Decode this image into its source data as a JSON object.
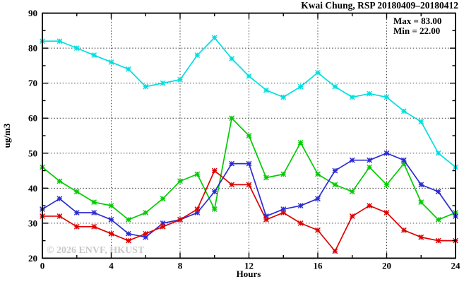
{
  "title": "Kwai Chung, RSP 20180409–20180412",
  "annotations": {
    "max_label": "Max = 83.00",
    "min_label": "Min = 22.00"
  },
  "watermark": "© 2026 ENVF, HKUST",
  "chart_data": {
    "type": "line",
    "title": "Kwai Chung, RSP 20180409–20180412",
    "xlabel": "Hours",
    "ylabel": "ug/m3",
    "xlim": [
      0,
      24
    ],
    "ylim": [
      20,
      90
    ],
    "x": [
      0,
      1,
      2,
      3,
      4,
      5,
      6,
      7,
      8,
      9,
      10,
      11,
      12,
      13,
      14,
      15,
      16,
      17,
      18,
      19,
      20,
      21,
      22,
      23,
      24
    ],
    "x_major_ticks": [
      0,
      4,
      8,
      12,
      16,
      20,
      24
    ],
    "x_minor_ticks": [
      2,
      6,
      10,
      14,
      18,
      22
    ],
    "y_major_ticks": [
      20,
      30,
      40,
      50,
      60,
      70,
      80,
      90
    ],
    "y_minor_ticks": [
      25,
      35,
      45,
      55,
      65,
      75,
      85
    ],
    "grid": "dotted-at-major-ticks",
    "legend_position": "top-right-inside-stats-only",
    "marker": "asterisk",
    "stats": {
      "max": 83.0,
      "min": 22.0
    },
    "series": [
      {
        "name": "cyan",
        "color": "#00dfdf",
        "values": [
          82,
          82,
          80,
          78,
          76,
          74,
          69,
          70,
          71,
          78,
          83,
          77,
          72,
          68,
          66,
          69,
          73,
          69,
          66,
          67,
          66,
          62,
          59,
          50,
          46
        ]
      },
      {
        "name": "green",
        "color": "#00cc00",
        "values": [
          46,
          42,
          39,
          36,
          35,
          31,
          33,
          37,
          42,
          44,
          34,
          60,
          55,
          43,
          44,
          53,
          44,
          41,
          39,
          46,
          41,
          47,
          36,
          31,
          33
        ]
      },
      {
        "name": "blue",
        "color": "#2b2bd4",
        "values": [
          34,
          37,
          33,
          33,
          31,
          27,
          26,
          30,
          31,
          33,
          39,
          47,
          47,
          32,
          34,
          35,
          37,
          45,
          48,
          48,
          50,
          48,
          41,
          39,
          32
        ]
      },
      {
        "name": "red",
        "color": "#dd0000",
        "values": [
          32,
          32,
          29,
          29,
          27,
          25,
          27,
          29,
          31,
          34,
          45,
          41,
          41,
          31,
          33,
          30,
          28,
          22,
          32,
          35,
          33,
          28,
          26,
          25,
          25
        ]
      }
    ]
  }
}
